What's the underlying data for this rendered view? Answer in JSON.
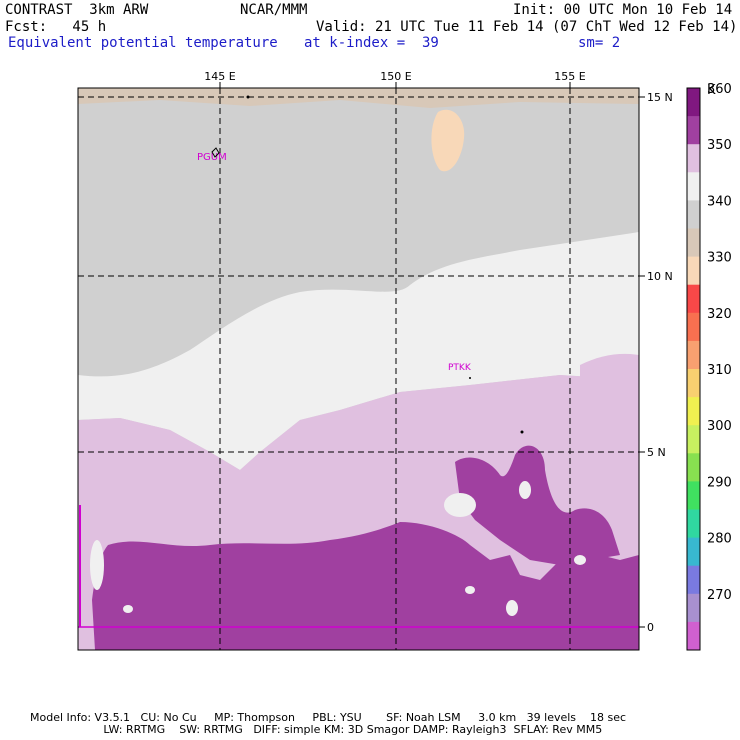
{
  "header": {
    "line1_left": "CONTRAST  3km ARW",
    "line1_mid": "NCAR/MMM",
    "line1_right": "Init: 00 UTC Mon 10 Feb 14",
    "line2_left": "Fcst:   45 h",
    "line2_right": "Valid: 21 UTC Tue 11 Feb 14 (07 ChT Wed 12 Feb 14)",
    "line3_left": "Equivalent potential temperature",
    "line3_mid": "at k-index =  39",
    "line3_right": "sm= 2"
  },
  "map": {
    "lon_labels": [
      "145 E",
      "150 E",
      "155 E"
    ],
    "lat_labels": [
      "15 N",
      "10 N",
      "5 N",
      "0"
    ],
    "stations": [
      "PGUM",
      "PTKK"
    ]
  },
  "colorbar": {
    "unit": "K",
    "levels": [
      270,
      280,
      290,
      300,
      310,
      320,
      330,
      340,
      350,
      360
    ],
    "colors": [
      "#d060d0",
      "#a890d0",
      "#7a7ae0",
      "#38b8d0",
      "#30d8a0",
      "#40e060",
      "#88e050",
      "#c8f060",
      "#f0f050",
      "#f8d070",
      "#f8a070",
      "#f87050",
      "#f84848",
      "#f8d8b8",
      "#d8c8b8",
      "#d0d0d0",
      "#f0f0f0",
      "#e0c0e0",
      "#a040a0",
      "#801880"
    ]
  },
  "footer": {
    "line1": "Model Info: V3.5.1   CU: No Cu     MP: Thompson     PBL: YSU       SF: Noah LSM     3.0 km   39 levels    18 sec",
    "line2": "                     LW: RRTMG    SW: RRTMG   DIFF: simple KM: 3D Smagor DAMP: Rayleigh3  SFLAY: Rev MM5"
  }
}
